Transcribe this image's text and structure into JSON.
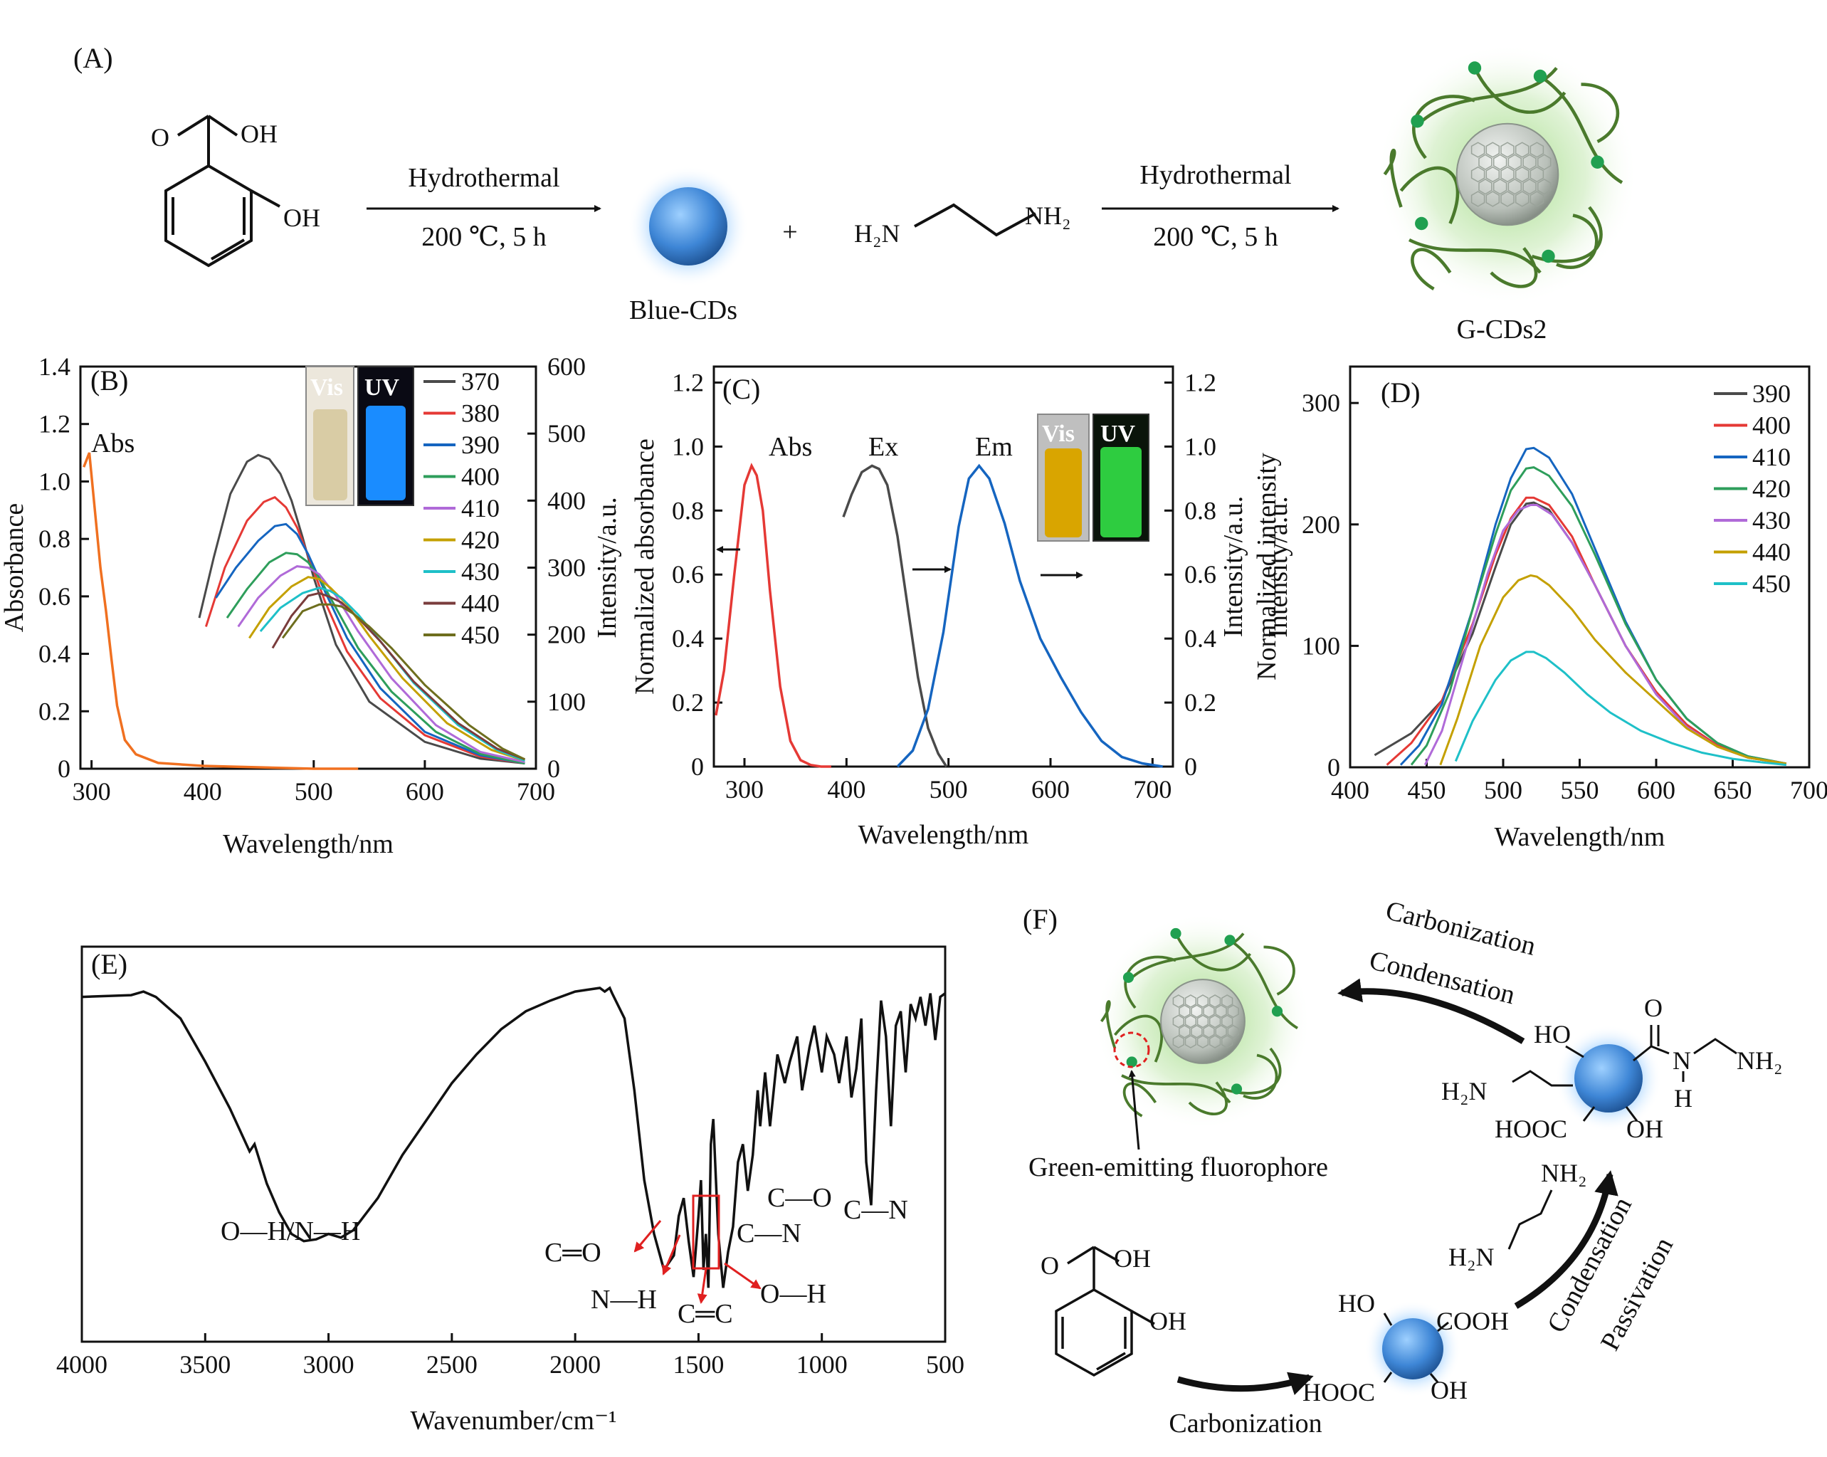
{
  "panels": {
    "A": "(A)",
    "B": "(B)",
    "C": "(C)",
    "D": "(D)",
    "E": "(E)",
    "F": "(F)"
  },
  "scheme_A": {
    "reactant_groups": {
      "o": "O",
      "oh_acid": "OH",
      "oh_phenol": "OH"
    },
    "step1": {
      "top": "Hydrothermal",
      "bottom": "200 ℃, 5 h"
    },
    "intermediate": "Blue-CDs",
    "plus": "+",
    "amine_left": "H₂N",
    "amine_right": "NH₂",
    "step2": {
      "top": "Hydrothermal",
      "bottom": "200 ℃, 5 h"
    },
    "product": "G-CDs2"
  },
  "inset_B": {
    "vis": "Vis",
    "uv": "UV",
    "vis_color": "#d9cca5",
    "uv_color": "#1a8cff"
  },
  "inset_C": {
    "vis": "Vis",
    "uv": "UV",
    "vis_color": "#d9a500",
    "uv_color": "#2ecc40"
  },
  "scheme_F": {
    "step_top1": "Carbonization",
    "step_top2": "Condensation",
    "fluorophore_label": "Green-emitting fluorophore",
    "step_right1": "Condensation",
    "step_right2": "Passivation",
    "step_bottom": "Carbonization",
    "groups_top": {
      "ho": "HO",
      "o": "O",
      "n": "N",
      "h": "H",
      "nh2": "NH₂",
      "h2n": "H₂N",
      "hooc": "HOOC",
      "oh": "OH"
    },
    "groups_bottom": {
      "ho": "HO",
      "cooh": "COOH",
      "hooc": "HOOC",
      "oh": "OH"
    },
    "reagent": {
      "nh2": "NH₂",
      "h2n": "H₂N"
    },
    "reactant_groups": {
      "o": "O",
      "oh_acid": "OH",
      "oh_phenol": "OH"
    }
  },
  "chart_data": [
    {
      "panel": "B",
      "type": "line",
      "xlabel": "Wavelength/nm",
      "ylabel": "Absorbance",
      "ylabel_right": "Intensity/a.u.",
      "xlim": [
        290,
        700
      ],
      "ylim": [
        0,
        1.4
      ],
      "ylim_right": [
        0,
        600
      ],
      "xticks": [
        300,
        400,
        500,
        600,
        700
      ],
      "yticks": [
        0,
        0.2,
        0.4,
        0.6,
        0.8,
        1.0,
        1.2,
        1.4
      ],
      "yticks_right": [
        0,
        100,
        200,
        300,
        400,
        500,
        600
      ],
      "annotations": [
        "Abs"
      ],
      "legend_position": "top-right",
      "absorbance": {
        "color": "#f07020",
        "x": [
          293,
          298,
          303,
          308,
          313,
          318,
          323,
          330,
          340,
          360,
          400,
          450,
          500,
          540
        ],
        "y": [
          1.05,
          1.1,
          0.9,
          0.7,
          0.55,
          0.38,
          0.22,
          0.1,
          0.05,
          0.02,
          0.01,
          0.005,
          0.0,
          0.0
        ]
      },
      "series": [
        {
          "name": "370",
          "color": "#4a4a4a",
          "x": [
            397,
            410,
            425,
            440,
            450,
            460,
            470,
            480,
            490,
            500,
            520,
            550,
            600,
            650,
            690
          ],
          "y": [
            225,
            315,
            410,
            458,
            468,
            462,
            440,
            400,
            345,
            285,
            185,
            100,
            40,
            15,
            8
          ]
        },
        {
          "name": "380",
          "color": "#e53935",
          "x": [
            403,
            420,
            440,
            455,
            465,
            475,
            485,
            495,
            510,
            530,
            560,
            600,
            650,
            690
          ],
          "y": [
            212,
            300,
            370,
            398,
            405,
            390,
            360,
            318,
            250,
            175,
            105,
            50,
            18,
            8
          ]
        },
        {
          "name": "390",
          "color": "#1565c0",
          "x": [
            412,
            430,
            450,
            465,
            475,
            485,
            495,
            510,
            530,
            560,
            600,
            650,
            690
          ],
          "y": [
            255,
            300,
            340,
            362,
            365,
            350,
            320,
            265,
            195,
            120,
            55,
            20,
            8
          ]
        },
        {
          "name": "400",
          "color": "#2e9e5b",
          "x": [
            422,
            440,
            460,
            475,
            485,
            495,
            505,
            520,
            540,
            570,
            610,
            650,
            690
          ],
          "y": [
            225,
            268,
            308,
            322,
            320,
            308,
            285,
            240,
            180,
            115,
            55,
            22,
            8
          ]
        },
        {
          "name": "410",
          "color": "#b06ad8",
          "x": [
            432,
            450,
            470,
            485,
            495,
            505,
            520,
            540,
            570,
            610,
            650,
            690
          ],
          "y": [
            212,
            255,
            288,
            302,
            300,
            290,
            258,
            205,
            135,
            65,
            25,
            10
          ]
        },
        {
          "name": "420",
          "color": "#c4a000",
          "x": [
            442,
            460,
            480,
            495,
            505,
            515,
            530,
            550,
            580,
            620,
            660,
            690
          ],
          "y": [
            195,
            240,
            272,
            286,
            283,
            270,
            245,
            198,
            135,
            68,
            28,
            12
          ]
        },
        {
          "name": "430",
          "color": "#1ec0c8",
          "x": [
            452,
            470,
            490,
            505,
            515,
            525,
            540,
            560,
            590,
            630,
            665,
            690
          ],
          "y": [
            205,
            240,
            262,
            270,
            265,
            255,
            230,
            190,
            128,
            65,
            28,
            12
          ]
        },
        {
          "name": "440",
          "color": "#7a3c3c",
          "x": [
            463,
            480,
            495,
            505,
            515,
            525,
            540,
            560,
            590,
            630,
            665,
            690
          ],
          "y": [
            180,
            228,
            258,
            262,
            256,
            248,
            225,
            190,
            130,
            68,
            30,
            14
          ]
        },
        {
          "name": "450",
          "color": "#6e6e1e",
          "x": [
            472,
            490,
            505,
            515,
            525,
            535,
            550,
            570,
            600,
            640,
            670,
            690
          ],
          "y": [
            195,
            235,
            245,
            245,
            242,
            232,
            212,
            180,
            125,
            65,
            30,
            14
          ]
        }
      ]
    },
    {
      "panel": "C",
      "type": "line",
      "xlabel": "Wavelength/nm",
      "ylabel": "Normalized absorbance",
      "ylabel_mid": "Intensity/a.u.",
      "ylabel_right": "Normalized intensity",
      "xlim": [
        270,
        720
      ],
      "ylim": [
        0,
        1.25
      ],
      "xticks": [
        300,
        400,
        500,
        600,
        700
      ],
      "yticks": [
        0,
        0.2,
        0.4,
        0.6,
        0.8,
        1.0,
        1.2
      ],
      "yticks_right": [
        0,
        0.2,
        0.4,
        0.6,
        0.8,
        1.0,
        1.2
      ],
      "annotations": [
        "Abs",
        "Ex",
        "Em"
      ],
      "series": [
        {
          "name": "Abs",
          "color": "#e53935",
          "x": [
            272,
            280,
            290,
            300,
            307,
            312,
            318,
            325,
            335,
            345,
            355,
            365,
            375,
            385
          ],
          "y": [
            0.16,
            0.3,
            0.6,
            0.88,
            0.94,
            0.91,
            0.8,
            0.55,
            0.25,
            0.08,
            0.02,
            0.005,
            0.0,
            0.0
          ]
        },
        {
          "name": "Ex",
          "color": "#4a4a4a",
          "x": [
            397,
            405,
            415,
            425,
            432,
            440,
            450,
            460,
            470,
            480,
            490,
            498
          ],
          "y": [
            0.78,
            0.85,
            0.92,
            0.94,
            0.93,
            0.88,
            0.72,
            0.5,
            0.28,
            0.12,
            0.04,
            0.0
          ]
        },
        {
          "name": "Em",
          "color": "#1565c0",
          "x": [
            450,
            465,
            480,
            495,
            510,
            520,
            530,
            540,
            555,
            570,
            590,
            610,
            630,
            650,
            670,
            690,
            710
          ],
          "y": [
            0.0,
            0.05,
            0.18,
            0.42,
            0.75,
            0.9,
            0.94,
            0.9,
            0.76,
            0.58,
            0.4,
            0.28,
            0.17,
            0.08,
            0.03,
            0.01,
            0.0
          ]
        }
      ]
    },
    {
      "panel": "D",
      "type": "line",
      "xlabel": "Wavelength/nm",
      "ylabel": "Intensity/a.u.",
      "xlim": [
        400,
        700
      ],
      "ylim": [
        0,
        330
      ],
      "xticks": [
        400,
        450,
        500,
        550,
        600,
        650,
        700
      ],
      "yticks": [
        0,
        100,
        200,
        300
      ],
      "legend_position": "top-right",
      "series": [
        {
          "name": "390",
          "color": "#4a4a4a",
          "x": [
            416,
            440,
            460,
            480,
            495,
            505,
            515,
            520,
            530,
            545,
            560,
            580,
            600,
            620,
            640,
            660,
            685
          ],
          "y": [
            10,
            28,
            55,
            110,
            165,
            200,
            217,
            218,
            212,
            185,
            150,
            100,
            62,
            35,
            18,
            8,
            3
          ]
        },
        {
          "name": "400",
          "color": "#e53935",
          "x": [
            424,
            440,
            460,
            480,
            495,
            505,
            515,
            520,
            530,
            545,
            560,
            580,
            600,
            620,
            640,
            660,
            685
          ],
          "y": [
            2,
            20,
            55,
            118,
            175,
            205,
            222,
            222,
            216,
            190,
            150,
            100,
            62,
            35,
            18,
            8,
            3
          ]
        },
        {
          "name": "410",
          "color": "#1565c0",
          "x": [
            433,
            445,
            460,
            480,
            495,
            505,
            515,
            520,
            530,
            545,
            560,
            580,
            600,
            620,
            640,
            660,
            685
          ],
          "y": [
            2,
            18,
            52,
            130,
            200,
            238,
            262,
            263,
            255,
            225,
            180,
            120,
            72,
            40,
            20,
            9,
            3
          ]
        },
        {
          "name": "420",
          "color": "#2e9e5b",
          "x": [
            440,
            450,
            465,
            480,
            495,
            505,
            515,
            520,
            530,
            545,
            560,
            580,
            600,
            620,
            640,
            660,
            685
          ],
          "y": [
            2,
            18,
            62,
            130,
            192,
            228,
            246,
            247,
            240,
            215,
            175,
            118,
            72,
            40,
            20,
            9,
            3
          ]
        },
        {
          "name": "430",
          "color": "#b06ad8",
          "x": [
            449,
            460,
            475,
            490,
            500,
            510,
            518,
            522,
            532,
            545,
            560,
            580,
            600,
            620,
            640,
            660,
            685
          ],
          "y": [
            2,
            30,
            95,
            160,
            195,
            212,
            216,
            216,
            208,
            185,
            150,
            100,
            60,
            33,
            17,
            8,
            3
          ]
        },
        {
          "name": "440",
          "color": "#c4a000",
          "x": [
            459,
            470,
            485,
            500,
            510,
            518,
            522,
            530,
            545,
            560,
            580,
            600,
            620,
            640,
            660,
            685
          ],
          "y": [
            2,
            40,
            100,
            140,
            154,
            158,
            157,
            150,
            130,
            105,
            78,
            55,
            32,
            17,
            8,
            3
          ]
        },
        {
          "name": "450",
          "color": "#1ec0c8",
          "x": [
            469,
            480,
            495,
            505,
            515,
            520,
            528,
            540,
            555,
            570,
            590,
            610,
            630,
            650,
            670,
            685
          ],
          "y": [
            5,
            38,
            72,
            88,
            95,
            95,
            90,
            78,
            60,
            45,
            30,
            20,
            12,
            7,
            4,
            2
          ]
        }
      ]
    },
    {
      "panel": "E",
      "type": "line",
      "xlabel": "Wavenumber/cm⁻¹",
      "xlim": [
        4000,
        500
      ],
      "xticks": [
        4000,
        3500,
        3000,
        2500,
        2000,
        1500,
        1000,
        500
      ],
      "annotations": [
        "O—H/N—H",
        "C—O",
        "C—N",
        "C—N",
        "C═O",
        "N—H",
        "C═C",
        "O—H"
      ],
      "series": [
        {
          "name": "FTIR",
          "color": "#111111",
          "x": [
            4000,
            3800,
            3750,
            3700,
            3600,
            3500,
            3400,
            3320,
            3300,
            3250,
            3200,
            3150,
            3100,
            3050,
            3000,
            2950,
            2900,
            2800,
            2700,
            2600,
            2500,
            2400,
            2300,
            2200,
            2100,
            2000,
            1950,
            1900,
            1880,
            1860,
            1850,
            1800,
            1760,
            1720,
            1680,
            1640,
            1620,
            1600,
            1580,
            1560,
            1540,
            1520,
            1500,
            1490,
            1480,
            1470,
            1460,
            1450,
            1440,
            1420,
            1400,
            1380,
            1360,
            1340,
            1320,
            1300,
            1280,
            1260,
            1250,
            1230,
            1210,
            1180,
            1150,
            1130,
            1100,
            1080,
            1050,
            1030,
            1000,
            980,
            950,
            930,
            900,
            880,
            860,
            840,
            820,
            800,
            780,
            760,
            740,
            720,
            700,
            680,
            660,
            640,
            620,
            600,
            580,
            560,
            540,
            520,
            500
          ],
          "y": [
            0.96,
            0.965,
            0.975,
            0.96,
            0.9,
            0.78,
            0.65,
            0.53,
            0.55,
            0.44,
            0.36,
            0.3,
            0.28,
            0.285,
            0.3,
            0.29,
            0.31,
            0.4,
            0.52,
            0.62,
            0.72,
            0.8,
            0.87,
            0.92,
            0.95,
            0.975,
            0.98,
            0.985,
            0.975,
            0.985,
            0.97,
            0.9,
            0.7,
            0.45,
            0.3,
            0.2,
            0.22,
            0.24,
            0.35,
            0.4,
            0.28,
            0.18,
            0.35,
            0.45,
            0.2,
            0.3,
            0.15,
            0.55,
            0.62,
            0.3,
            0.15,
            0.25,
            0.32,
            0.5,
            0.55,
            0.42,
            0.52,
            0.7,
            0.6,
            0.75,
            0.6,
            0.8,
            0.72,
            0.78,
            0.85,
            0.7,
            0.82,
            0.88,
            0.75,
            0.85,
            0.8,
            0.72,
            0.85,
            0.68,
            0.76,
            0.9,
            0.5,
            0.38,
            0.7,
            0.95,
            0.85,
            0.6,
            0.88,
            0.92,
            0.75,
            0.94,
            0.9,
            0.96,
            0.88,
            0.97,
            0.84,
            0.96,
            0.97
          ]
        }
      ]
    }
  ]
}
